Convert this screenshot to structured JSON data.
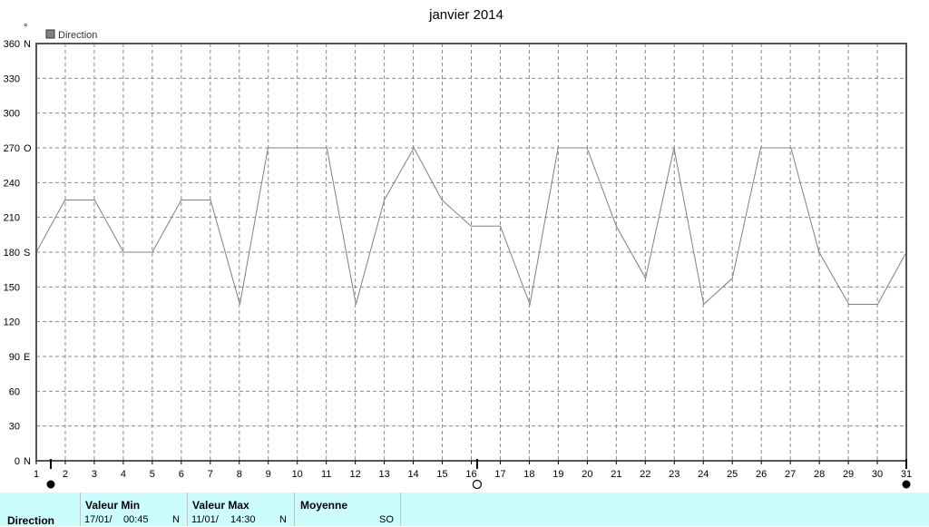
{
  "chart_data": {
    "type": "line",
    "title": "janvier 2014",
    "ylabel": "°",
    "legend": [
      "Direction"
    ],
    "legend_position": "top-left",
    "grid": true,
    "ylim": [
      0,
      360
    ],
    "xlim": [
      1,
      31
    ],
    "y_ticks": [
      {
        "value": 0,
        "label": "0",
        "dir": "N"
      },
      {
        "value": 30,
        "label": "30",
        "dir": ""
      },
      {
        "value": 60,
        "label": "60",
        "dir": ""
      },
      {
        "value": 90,
        "label": "90",
        "dir": "E"
      },
      {
        "value": 120,
        "label": "120",
        "dir": ""
      },
      {
        "value": 150,
        "label": "150",
        "dir": ""
      },
      {
        "value": 180,
        "label": "180",
        "dir": "S"
      },
      {
        "value": 210,
        "label": "210",
        "dir": ""
      },
      {
        "value": 240,
        "label": "240",
        "dir": ""
      },
      {
        "value": 270,
        "label": "270",
        "dir": "O"
      },
      {
        "value": 300,
        "label": "300",
        "dir": ""
      },
      {
        "value": 330,
        "label": "330",
        "dir": ""
      },
      {
        "value": 360,
        "label": "360",
        "dir": "N"
      }
    ],
    "x_ticks": [
      "1",
      "2",
      "3",
      "4",
      "5",
      "6",
      "7",
      "8",
      "9",
      "10",
      "11",
      "12",
      "13",
      "14",
      "15",
      "16",
      "17",
      "18",
      "19",
      "20",
      "21",
      "22",
      "23",
      "24",
      "25",
      "26",
      "27",
      "28",
      "29",
      "30",
      "31"
    ],
    "moon_phases": [
      {
        "x": 1.5,
        "phase": "new"
      },
      {
        "x": 16.2,
        "phase": "full"
      },
      {
        "x": 31,
        "phase": "new"
      }
    ],
    "series": [
      {
        "name": "Direction",
        "color": "#808080",
        "points": [
          [
            1,
            180
          ],
          [
            1.99,
            225
          ],
          [
            3.01,
            225
          ],
          [
            4.01,
            180
          ],
          [
            5,
            180
          ],
          [
            6,
            225
          ],
          [
            7.01,
            225
          ],
          [
            8.02,
            135
          ],
          [
            8.99,
            270
          ],
          [
            10.01,
            270
          ],
          [
            11.02,
            270
          ],
          [
            12.02,
            135
          ],
          [
            13,
            225
          ],
          [
            14.02,
            270
          ],
          [
            14.99,
            225
          ],
          [
            15.99,
            202.5
          ],
          [
            17,
            202.5
          ],
          [
            18.02,
            135
          ],
          [
            18.99,
            270
          ],
          [
            19.99,
            270
          ],
          [
            21,
            202.5
          ],
          [
            22.01,
            157.5
          ],
          [
            22.99,
            270
          ],
          [
            24.01,
            135
          ],
          [
            25,
            157.5
          ],
          [
            25.98,
            270
          ],
          [
            27.02,
            270
          ],
          [
            27.99,
            180
          ],
          [
            29.02,
            135
          ],
          [
            30.01,
            135
          ],
          [
            31,
            180
          ]
        ]
      }
    ]
  },
  "summary": {
    "row_label": "Direction",
    "min_header": "Valeur Min",
    "min_date": "17/01/",
    "min_time": "00:45",
    "min_dir": "N",
    "max_header": "Valeur Max",
    "max_date": "11/01/",
    "max_time": "14:30",
    "max_dir": "N",
    "avg_header": "Moyenne",
    "avg_dir": "SO"
  }
}
